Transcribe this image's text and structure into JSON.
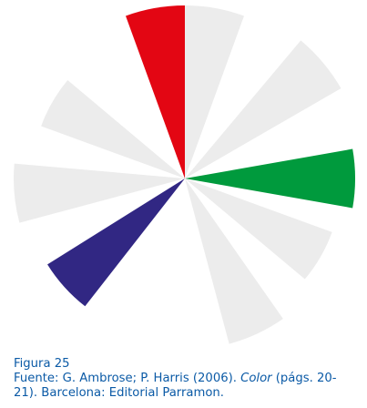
{
  "figure": {
    "label": "Figura 25",
    "source_prefix": "Fuente: G. Ambrose; P. Harris (2006). ",
    "source_title": "Color",
    "source_pages_1": " (págs. 20-",
    "source_pages_2": "21). Barcelona: Editorial Parramon."
  },
  "wheel": {
    "segments": [
      {
        "name": "segment-red",
        "color": "#e30613"
      },
      {
        "name": "segment-gray-1",
        "color": "#ececec"
      },
      {
        "name": "segment-gray-2",
        "color": "#ececec"
      },
      {
        "name": "segment-green",
        "color": "#009a3d"
      },
      {
        "name": "segment-gray-3",
        "color": "#ececec"
      },
      {
        "name": "segment-gray-4",
        "color": "#ececec"
      },
      {
        "name": "segment-blue",
        "color": "#312783"
      },
      {
        "name": "segment-gray-5",
        "color": "#ececec"
      },
      {
        "name": "segment-gray-6",
        "color": "#ececec"
      }
    ]
  }
}
